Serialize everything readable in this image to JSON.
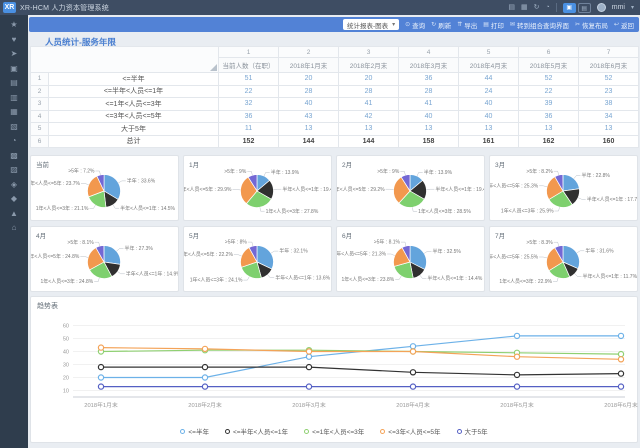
{
  "topbar": {
    "logo_text": "XR",
    "app_title": "XR-HCM 人力资本管理系统",
    "icons": [
      {
        "name": "message-icon",
        "glyph": "▤"
      },
      {
        "name": "apps-icon",
        "glyph": "▦"
      },
      {
        "name": "refresh-icon",
        "glyph": "↻"
      },
      {
        "name": "help-icon",
        "glyph": "◔"
      }
    ],
    "view_toggles": [
      {
        "name": "view-toggle-card",
        "glyph": "▣",
        "active": true
      },
      {
        "name": "view-toggle-list",
        "glyph": "▤",
        "active": false
      }
    ],
    "user_name": "mmi",
    "user_caret": "▾"
  },
  "toolbar": {
    "view_dropdown": "统计报表-图表",
    "dropdown_caret": "▾",
    "buttons": [
      {
        "name": "search-button",
        "icon_name": "search-icon",
        "glyph": "⊙",
        "label": "查询"
      },
      {
        "name": "refresh-button",
        "icon_name": "refresh-icon",
        "glyph": "↻",
        "label": "刷新"
      },
      {
        "name": "export-button",
        "icon_name": "export-icon",
        "glyph": "⇈",
        "label": "导出"
      },
      {
        "name": "print-button",
        "icon_name": "print-icon",
        "glyph": "▤",
        "label": "打印"
      },
      {
        "name": "combo-query-button",
        "icon_name": "mail-icon",
        "glyph": "✉",
        "label": "转到组合查询界面"
      },
      {
        "name": "reset-layout-button",
        "icon_name": "scissors-icon",
        "glyph": "✂",
        "label": "恢复布局"
      },
      {
        "name": "back-button",
        "icon_name": "back-icon",
        "glyph": "↩",
        "label": "返回"
      }
    ]
  },
  "sidebar": {
    "items": [
      {
        "name": "star-icon",
        "glyph": "★"
      },
      {
        "name": "favorite-icon",
        "glyph": "♥"
      },
      {
        "name": "send-icon",
        "glyph": "➤"
      },
      {
        "name": "module-icon",
        "glyph": "▣"
      },
      {
        "name": "briefcase-icon",
        "glyph": "▤"
      },
      {
        "name": "document-icon",
        "glyph": "▥"
      },
      {
        "name": "apps-grid-icon",
        "glyph": "▦"
      },
      {
        "name": "report-icon",
        "glyph": "▧"
      },
      {
        "name": "clock-icon",
        "glyph": "◔"
      },
      {
        "name": "archive-icon",
        "glyph": "▩"
      },
      {
        "name": "chart-icon",
        "glyph": "▨"
      },
      {
        "name": "assets-icon",
        "glyph": "◈"
      },
      {
        "name": "diamond-icon",
        "glyph": "◆"
      },
      {
        "name": "org-icon",
        "glyph": "▲"
      },
      {
        "name": "home-icon",
        "glyph": "⌂"
      }
    ]
  },
  "page": {
    "title": "人员统计-服务年限"
  },
  "table": {
    "col_numbers": [
      "1",
      "2",
      "3",
      "4",
      "5",
      "6",
      "7"
    ],
    "columns": [
      "当前人数（在职）",
      "2018年1月末",
      "2018年2月末",
      "2018年3月末",
      "2018年4月末",
      "2018年5月末",
      "2018年6月末"
    ],
    "rows": [
      {
        "num": "1",
        "label": "<=半年",
        "values": [
          51,
          20,
          20,
          36,
          44,
          52,
          52
        ]
      },
      {
        "num": "2",
        "label": "<=半年<人员<=1年",
        "values": [
          22,
          28,
          28,
          28,
          24,
          22,
          23
        ]
      },
      {
        "num": "3",
        "label": "<=1年<人员<=3年",
        "values": [
          32,
          40,
          41,
          41,
          40,
          39,
          38
        ]
      },
      {
        "num": "4",
        "label": "<=3年<人员<=5年",
        "values": [
          36,
          43,
          42,
          40,
          40,
          36,
          34
        ]
      },
      {
        "num": "5",
        "label": "大于5年",
        "values": [
          11,
          13,
          13,
          13,
          13,
          13,
          13
        ]
      },
      {
        "num": "6",
        "label": "总计",
        "values": [
          152,
          144,
          144,
          158,
          161,
          162,
          160
        ],
        "is_total": true
      }
    ]
  },
  "colors": {
    "pie_palette": [
      "#63a4dc",
      "#303030",
      "#7ed06e",
      "#f2984e",
      "#7468d4"
    ],
    "line_palette": [
      "#6cb1e8",
      "#333333",
      "#8fd072",
      "#f4a358",
      "#5560c4"
    ],
    "accent": "#4a7fd0",
    "toolbar_bg": "#5282d6",
    "topbar_bg": "#3e4d63",
    "sidebar_bg": "#2f3d4d",
    "value_text": "#7aa6d2"
  },
  "chart_data": [
    {
      "type": "pie",
      "title": "当前",
      "labels": [
        "半年",
        "半年<人员<=1年",
        "1年<人员<=3年",
        "3年<人员<=5年",
        ">5年"
      ],
      "values": [
        33.6,
        14.5,
        21.1,
        23.7,
        7.2
      ]
    },
    {
      "type": "pie",
      "title": "1月",
      "labels": [
        "半年",
        "半年<人员<=1年",
        "1年<人员<=3年",
        "3年<人员<=5年",
        ">5年"
      ],
      "values": [
        13.9,
        19.4,
        27.8,
        29.9,
        9.0
      ]
    },
    {
      "type": "pie",
      "title": "2月",
      "labels": [
        "半年",
        "半年<人员<=1年",
        "1年<人员<=3年",
        "3年<人员<=5年",
        ">5年"
      ],
      "values": [
        13.9,
        19.4,
        28.5,
        29.2,
        9.0
      ]
    },
    {
      "type": "pie",
      "title": "3月",
      "labels": [
        "半年",
        "半年<人员<=1年",
        "1年<人员<=3年",
        "3年<人员<=5年",
        ">5年"
      ],
      "values": [
        22.8,
        17.7,
        25.9,
        25.3,
        8.2
      ]
    },
    {
      "type": "pie",
      "title": "4月",
      "labels": [
        "半年",
        "半年<人员<=1年",
        "1年<人员<=3年",
        "3年<人员<=5年",
        ">5年"
      ],
      "values": [
        27.3,
        14.9,
        24.8,
        24.8,
        8.1
      ]
    },
    {
      "type": "pie",
      "title": "5月",
      "labels": [
        "半年",
        "半年<人员<=1年",
        "1年<人员<=3年",
        "3年<人员<=5年",
        ">5年"
      ],
      "values": [
        32.1,
        13.6,
        24.1,
        22.2,
        8.0
      ]
    },
    {
      "type": "pie",
      "title": "6月",
      "labels": [
        "半年",
        "半年<人员<=1年",
        "1年<人员<=3年",
        "3年<人员<=5年",
        ">5年"
      ],
      "values": [
        32.5,
        14.4,
        23.8,
        21.3,
        8.1
      ]
    },
    {
      "type": "pie",
      "title": "7月",
      "labels": [
        "半年",
        "半年<人员<=1年",
        "1年<人员<=3年",
        "3年<人员<=5年",
        ">5年"
      ],
      "values": [
        31.6,
        11.7,
        22.9,
        25.5,
        8.3
      ]
    },
    {
      "type": "line",
      "title": "趋势表",
      "x": [
        "2018年1月末",
        "2018年2月末",
        "2018年3月末",
        "2018年4月末",
        "2018年5月末",
        "2018年6月末"
      ],
      "series": [
        {
          "name": "<=半年",
          "values": [
            20,
            20,
            36,
            44,
            52,
            52
          ]
        },
        {
          "name": "<=半年<人员<=1年",
          "values": [
            28,
            28,
            28,
            24,
            22,
            23
          ]
        },
        {
          "name": "<=1年<人员<=3年",
          "values": [
            40,
            41,
            41,
            40,
            39,
            38
          ]
        },
        {
          "name": "<=3年<人员<=5年",
          "values": [
            43,
            42,
            40,
            40,
            36,
            34
          ]
        },
        {
          "name": "大于5年",
          "values": [
            13,
            13,
            13,
            13,
            13,
            13
          ]
        }
      ],
      "yticks": [
        10,
        20,
        30,
        40,
        50,
        60
      ],
      "ylim": [
        5,
        65
      ],
      "grid": true,
      "legend_position": "bottom"
    }
  ]
}
